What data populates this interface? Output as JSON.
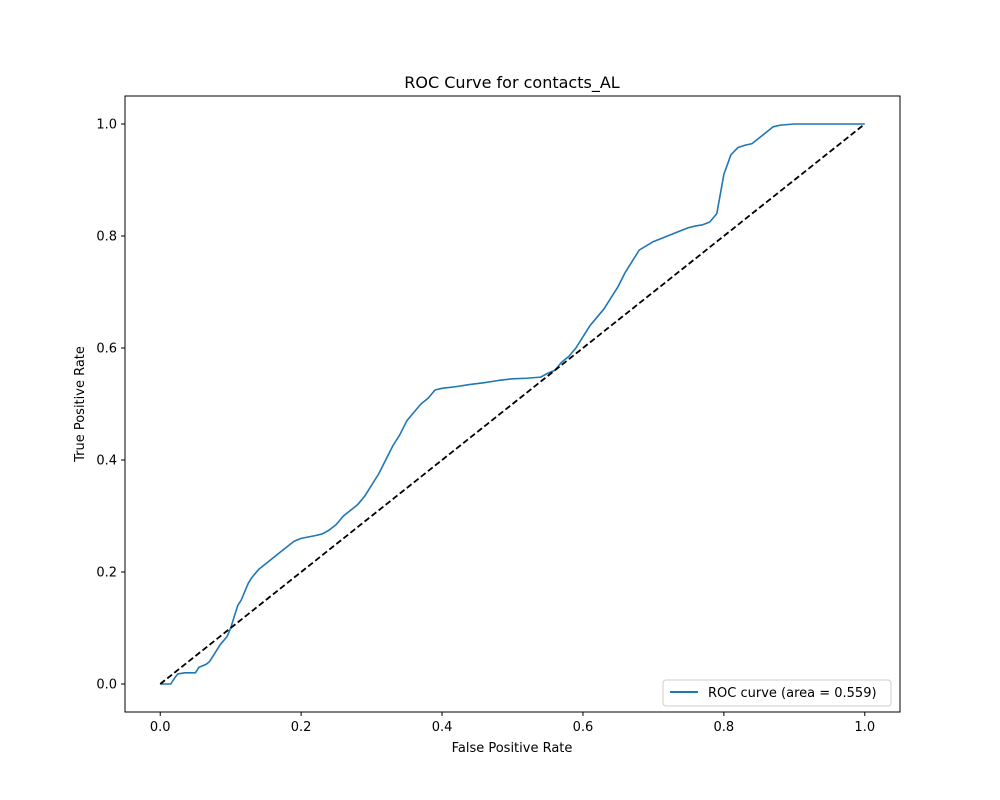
{
  "chart_data": {
    "type": "line",
    "title": "ROC Curve for contacts_AL",
    "xlabel": "False Positive Rate",
    "ylabel": "True Positive Rate",
    "xlim": [
      -0.05,
      1.05
    ],
    "ylim": [
      -0.05,
      1.05
    ],
    "xticks": [
      0.0,
      0.2,
      0.4,
      0.6,
      0.8,
      1.0
    ],
    "yticks": [
      0.0,
      0.2,
      0.4,
      0.6,
      0.8,
      1.0
    ],
    "xtick_labels": [
      "0.0",
      "0.2",
      "0.4",
      "0.6",
      "0.8",
      "1.0"
    ],
    "ytick_labels": [
      "0.0",
      "0.2",
      "0.4",
      "0.6",
      "0.8",
      "1.0"
    ],
    "grid": false,
    "legend_position": "lower-right",
    "series": [
      {
        "name": "ROC curve (area = 0.559)",
        "color": "#1f77b4",
        "style": "solid",
        "x": [
          0.0,
          0.015,
          0.02,
          0.025,
          0.035,
          0.05,
          0.055,
          0.065,
          0.07,
          0.08,
          0.085,
          0.095,
          0.1,
          0.105,
          0.11,
          0.115,
          0.12,
          0.125,
          0.13,
          0.14,
          0.15,
          0.16,
          0.17,
          0.18,
          0.19,
          0.2,
          0.22,
          0.23,
          0.24,
          0.25,
          0.26,
          0.27,
          0.28,
          0.29,
          0.3,
          0.31,
          0.32,
          0.33,
          0.34,
          0.35,
          0.36,
          0.37,
          0.38,
          0.39,
          0.4,
          0.42,
          0.44,
          0.46,
          0.48,
          0.5,
          0.52,
          0.54,
          0.55,
          0.56,
          0.57,
          0.58,
          0.59,
          0.6,
          0.61,
          0.62,
          0.63,
          0.64,
          0.65,
          0.66,
          0.67,
          0.68,
          0.7,
          0.72,
          0.74,
          0.75,
          0.76,
          0.77,
          0.78,
          0.79,
          0.8,
          0.81,
          0.82,
          0.83,
          0.84,
          0.85,
          0.86,
          0.87,
          0.88,
          0.9,
          0.95,
          1.0
        ],
        "y": [
          0.0,
          0.0,
          0.01,
          0.018,
          0.02,
          0.02,
          0.03,
          0.035,
          0.04,
          0.06,
          0.07,
          0.085,
          0.1,
          0.12,
          0.14,
          0.15,
          0.165,
          0.18,
          0.19,
          0.205,
          0.215,
          0.225,
          0.235,
          0.245,
          0.255,
          0.26,
          0.265,
          0.268,
          0.275,
          0.285,
          0.3,
          0.31,
          0.32,
          0.335,
          0.355,
          0.375,
          0.4,
          0.425,
          0.445,
          0.47,
          0.485,
          0.5,
          0.51,
          0.525,
          0.528,
          0.531,
          0.535,
          0.538,
          0.542,
          0.545,
          0.546,
          0.548,
          0.555,
          0.56,
          0.575,
          0.585,
          0.6,
          0.62,
          0.64,
          0.655,
          0.67,
          0.69,
          0.71,
          0.735,
          0.755,
          0.775,
          0.79,
          0.8,
          0.81,
          0.815,
          0.818,
          0.82,
          0.825,
          0.84,
          0.91,
          0.945,
          0.958,
          0.962,
          0.965,
          0.975,
          0.985,
          0.995,
          0.998,
          1.0,
          1.0,
          1.0
        ]
      },
      {
        "name": "",
        "color": "#000000",
        "style": "dashed",
        "x": [
          0.0,
          1.0
        ],
        "y": [
          0.0,
          1.0
        ]
      }
    ],
    "legend": [
      {
        "label": "ROC curve (area = 0.559)",
        "color": "#1f77b4"
      }
    ]
  }
}
